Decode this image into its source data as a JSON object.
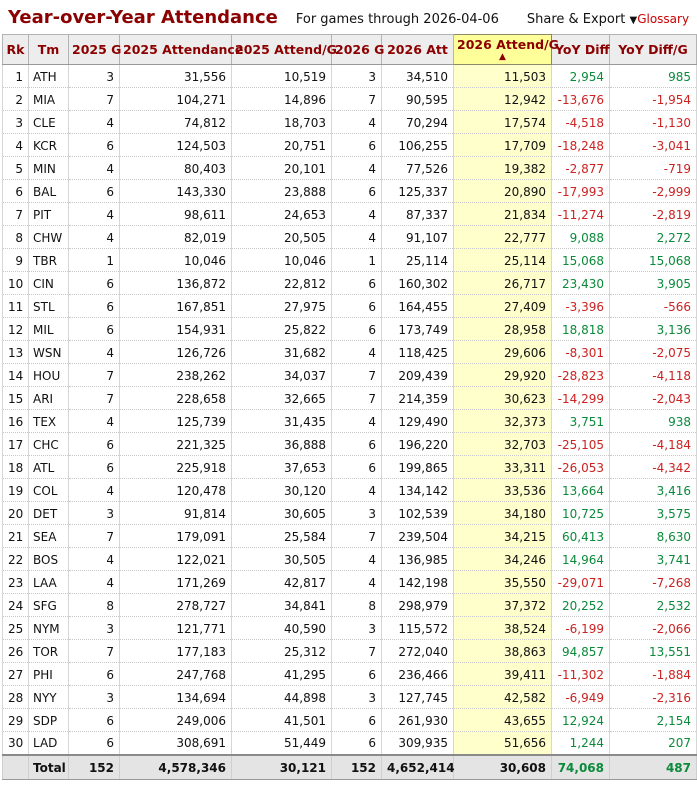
{
  "page": {
    "title": "Year-over-Year Attendance",
    "subtitle": "For games through 2026-04-06",
    "share_export_label": "Share & Export",
    "share_export_caret": "▼",
    "glossary_label": "Glossary"
  },
  "colors": {
    "heading_maroon": "#8B0000",
    "glossary_red": "#CC0000",
    "positive_green": "#0A8A3A",
    "negative_red": "#CC2222",
    "sorted_header_bg": "#FFFF99",
    "sorted_cell_bg": "#FFFFCC",
    "header_bg": "#EDEDED",
    "total_row_bg": "#E4E4E4"
  },
  "icons": {
    "sort_ascending_icon": "▲",
    "dropdown_caret_icon": "▼"
  },
  "table": {
    "columns": [
      "Rk",
      "Tm",
      "2025 G",
      "2025 Attendance",
      "2025 Attend/G",
      "2026 G",
      "2026 Att",
      "2026 Attend/G",
      "YoY Diff",
      "YoY Diff/G"
    ],
    "sorted_column_index": 7,
    "sorted_column": "2026 Attend/G",
    "sort_direction": "ascending",
    "sort_arrow": "▲",
    "rows": [
      [
        "1",
        "ATH",
        "3",
        "31,556",
        "10,519",
        "3",
        "34,510",
        "11,503",
        "2,954",
        "985"
      ],
      [
        "2",
        "MIA",
        "7",
        "104,271",
        "14,896",
        "7",
        "90,595",
        "12,942",
        "-13,676",
        "-1,954"
      ],
      [
        "3",
        "CLE",
        "4",
        "74,812",
        "18,703",
        "4",
        "70,294",
        "17,574",
        "-4,518",
        "-1,130"
      ],
      [
        "4",
        "KCR",
        "6",
        "124,503",
        "20,751",
        "6",
        "106,255",
        "17,709",
        "-18,248",
        "-3,041"
      ],
      [
        "5",
        "MIN",
        "4",
        "80,403",
        "20,101",
        "4",
        "77,526",
        "19,382",
        "-2,877",
        "-719"
      ],
      [
        "6",
        "BAL",
        "6",
        "143,330",
        "23,888",
        "6",
        "125,337",
        "20,890",
        "-17,993",
        "-2,999"
      ],
      [
        "7",
        "PIT",
        "4",
        "98,611",
        "24,653",
        "4",
        "87,337",
        "21,834",
        "-11,274",
        "-2,819"
      ],
      [
        "8",
        "CHW",
        "4",
        "82,019",
        "20,505",
        "4",
        "91,107",
        "22,777",
        "9,088",
        "2,272"
      ],
      [
        "9",
        "TBR",
        "1",
        "10,046",
        "10,046",
        "1",
        "25,114",
        "25,114",
        "15,068",
        "15,068"
      ],
      [
        "10",
        "CIN",
        "6",
        "136,872",
        "22,812",
        "6",
        "160,302",
        "26,717",
        "23,430",
        "3,905"
      ],
      [
        "11",
        "STL",
        "6",
        "167,851",
        "27,975",
        "6",
        "164,455",
        "27,409",
        "-3,396",
        "-566"
      ],
      [
        "12",
        "MIL",
        "6",
        "154,931",
        "25,822",
        "6",
        "173,749",
        "28,958",
        "18,818",
        "3,136"
      ],
      [
        "13",
        "WSN",
        "4",
        "126,726",
        "31,682",
        "4",
        "118,425",
        "29,606",
        "-8,301",
        "-2,075"
      ],
      [
        "14",
        "HOU",
        "7",
        "238,262",
        "34,037",
        "7",
        "209,439",
        "29,920",
        "-28,823",
        "-4,118"
      ],
      [
        "15",
        "ARI",
        "7",
        "228,658",
        "32,665",
        "7",
        "214,359",
        "30,623",
        "-14,299",
        "-2,043"
      ],
      [
        "16",
        "TEX",
        "4",
        "125,739",
        "31,435",
        "4",
        "129,490",
        "32,373",
        "3,751",
        "938"
      ],
      [
        "17",
        "CHC",
        "6",
        "221,325",
        "36,888",
        "6",
        "196,220",
        "32,703",
        "-25,105",
        "-4,184"
      ],
      [
        "18",
        "ATL",
        "6",
        "225,918",
        "37,653",
        "6",
        "199,865",
        "33,311",
        "-26,053",
        "-4,342"
      ],
      [
        "19",
        "COL",
        "4",
        "120,478",
        "30,120",
        "4",
        "134,142",
        "33,536",
        "13,664",
        "3,416"
      ],
      [
        "20",
        "DET",
        "3",
        "91,814",
        "30,605",
        "3",
        "102,539",
        "34,180",
        "10,725",
        "3,575"
      ],
      [
        "21",
        "SEA",
        "7",
        "179,091",
        "25,584",
        "7",
        "239,504",
        "34,215",
        "60,413",
        "8,630"
      ],
      [
        "22",
        "BOS",
        "4",
        "122,021",
        "30,505",
        "4",
        "136,985",
        "34,246",
        "14,964",
        "3,741"
      ],
      [
        "23",
        "LAA",
        "4",
        "171,269",
        "42,817",
        "4",
        "142,198",
        "35,550",
        "-29,071",
        "-7,268"
      ],
      [
        "24",
        "SFG",
        "8",
        "278,727",
        "34,841",
        "8",
        "298,979",
        "37,372",
        "20,252",
        "2,532"
      ],
      [
        "25",
        "NYM",
        "3",
        "121,771",
        "40,590",
        "3",
        "115,572",
        "38,524",
        "-6,199",
        "-2,066"
      ],
      [
        "26",
        "TOR",
        "7",
        "177,183",
        "25,312",
        "7",
        "272,040",
        "38,863",
        "94,857",
        "13,551"
      ],
      [
        "27",
        "PHI",
        "6",
        "247,768",
        "41,295",
        "6",
        "236,466",
        "39,411",
        "-11,302",
        "-1,884"
      ],
      [
        "28",
        "NYY",
        "3",
        "134,694",
        "44,898",
        "3",
        "127,745",
        "42,582",
        "-6,949",
        "-2,316"
      ],
      [
        "29",
        "SDP",
        "6",
        "249,006",
        "41,501",
        "6",
        "261,930",
        "43,655",
        "12,924",
        "2,154"
      ],
      [
        "30",
        "LAD",
        "6",
        "308,691",
        "51,449",
        "6",
        "309,935",
        "51,656",
        "1,244",
        "207"
      ]
    ],
    "total_row": [
      "",
      "Total",
      "152",
      "4,578,346",
      "30,121",
      "152",
      "4,652,414",
      "30,608",
      "74,068",
      "487"
    ]
  }
}
